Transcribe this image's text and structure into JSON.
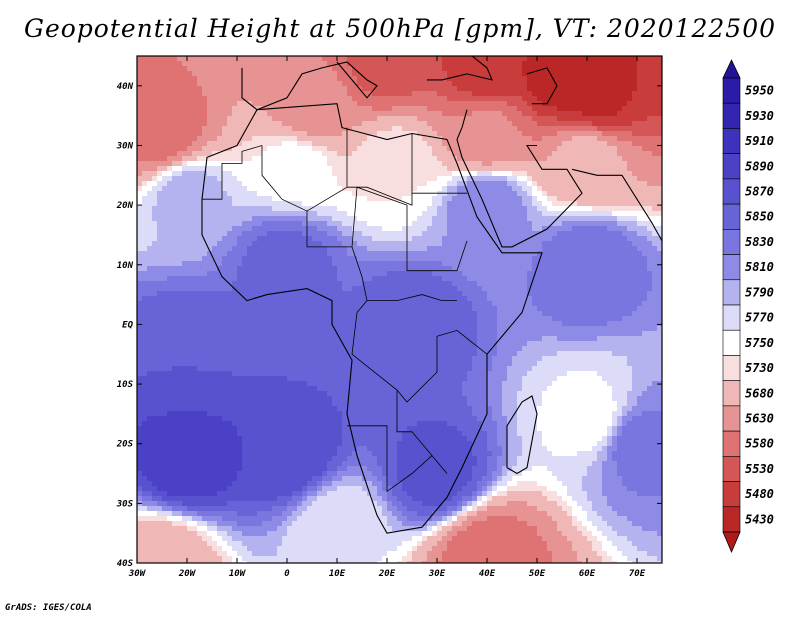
{
  "title": "Geopotential Height at 500hPa [gpm], VT: 2020122500",
  "credit": "GrADS: IGES/COLA",
  "map": {
    "variable": "Geopotential Height",
    "level": "500hPa",
    "units": "gpm",
    "valid_time": "2020122500",
    "lon_range": [
      -30,
      75
    ],
    "lat_range": [
      -40,
      45
    ],
    "lat_ticks": [
      {
        "value": 40,
        "label": "40N"
      },
      {
        "value": 30,
        "label": "30N"
      },
      {
        "value": 20,
        "label": "20N"
      },
      {
        "value": 10,
        "label": "10N"
      },
      {
        "value": 0,
        "label": "EQ"
      },
      {
        "value": -10,
        "label": "10S"
      },
      {
        "value": -20,
        "label": "20S"
      },
      {
        "value": -30,
        "label": "30S"
      },
      {
        "value": -40,
        "label": "40S"
      }
    ],
    "lon_ticks": [
      {
        "value": -30,
        "label": "30W"
      },
      {
        "value": -20,
        "label": "20W"
      },
      {
        "value": -10,
        "label": "10W"
      },
      {
        "value": 0,
        "label": "0"
      },
      {
        "value": 10,
        "label": "10E"
      },
      {
        "value": 20,
        "label": "20E"
      },
      {
        "value": 30,
        "label": "30E"
      },
      {
        "value": 40,
        "label": "40E"
      },
      {
        "value": 50,
        "label": "50E"
      },
      {
        "value": 60,
        "label": "60E"
      },
      {
        "value": 70,
        "label": "70E"
      }
    ]
  },
  "colorbar": {
    "levels": [
      {
        "label": "5950",
        "color": "#2b1ba8"
      },
      {
        "label": "5930",
        "color": "#3325b2"
      },
      {
        "label": "5910",
        "color": "#3d32bd"
      },
      {
        "label": "5890",
        "color": "#4a41c6"
      },
      {
        "label": "5870",
        "color": "#5952cf"
      },
      {
        "label": "5850",
        "color": "#6963d8"
      },
      {
        "label": "5830",
        "color": "#7a76e0"
      },
      {
        "label": "5810",
        "color": "#8e8be7"
      },
      {
        "label": "5790",
        "color": "#b4b3f0"
      },
      {
        "label": "5770",
        "color": "#dcdcf8"
      },
      {
        "label": "5750",
        "color": "#ffffff"
      },
      {
        "label": "5730",
        "color": "#f8dede"
      },
      {
        "label": "5680",
        "color": "#f0b7b7"
      },
      {
        "label": "5630",
        "color": "#e89393"
      },
      {
        "label": "5580",
        "color": "#df7373"
      },
      {
        "label": "5530",
        "color": "#d55656"
      },
      {
        "label": "5480",
        "color": "#c93c3c"
      },
      {
        "label": "5430",
        "color": "#bb2626"
      }
    ],
    "top_color": "#231397",
    "bottom_color": "#b21a1a"
  },
  "field": [
    {
      "lon": 55,
      "lat": 42,
      "value": 5440
    },
    {
      "lon": 62,
      "lat": 38,
      "value": 5470
    },
    {
      "lon": 40,
      "lat": 43,
      "value": 5500
    },
    {
      "lon": 20,
      "lat": 44,
      "value": 5560
    },
    {
      "lon": -25,
      "lat": 32,
      "value": 5600
    },
    {
      "lon": 5,
      "lat": 36,
      "value": 5650
    },
    {
      "lon": 40,
      "lat": 32,
      "value": 5640
    },
    {
      "lon": 60,
      "lat": 28,
      "value": 5700
    },
    {
      "lon": 2,
      "lat": 27,
      "value": 5760
    },
    {
      "lon": 22,
      "lat": 27,
      "value": 5750
    },
    {
      "lon": -20,
      "lat": 22,
      "value": 5800
    },
    {
      "lon": 40,
      "lat": 20,
      "value": 5830
    },
    {
      "lon": 60,
      "lat": 10,
      "value": 5850
    },
    {
      "lon": 0,
      "lat": 10,
      "value": 5860
    },
    {
      "lon": 25,
      "lat": 0,
      "value": 5870
    },
    {
      "lon": -20,
      "lat": -5,
      "value": 5870
    },
    {
      "lon": -20,
      "lat": -23,
      "value": 5905
    },
    {
      "lon": 0,
      "lat": -22,
      "value": 5890
    },
    {
      "lon": 30,
      "lat": -25,
      "value": 5880
    },
    {
      "lon": 61,
      "lat": -16,
      "value": 5760
    },
    {
      "lon": 70,
      "lat": -20,
      "value": 5840
    },
    {
      "lon": 10,
      "lat": -34,
      "value": 5770
    },
    {
      "lon": -25,
      "lat": -40,
      "value": 5700
    },
    {
      "lon": 40,
      "lat": -39,
      "value": 5600
    }
  ]
}
